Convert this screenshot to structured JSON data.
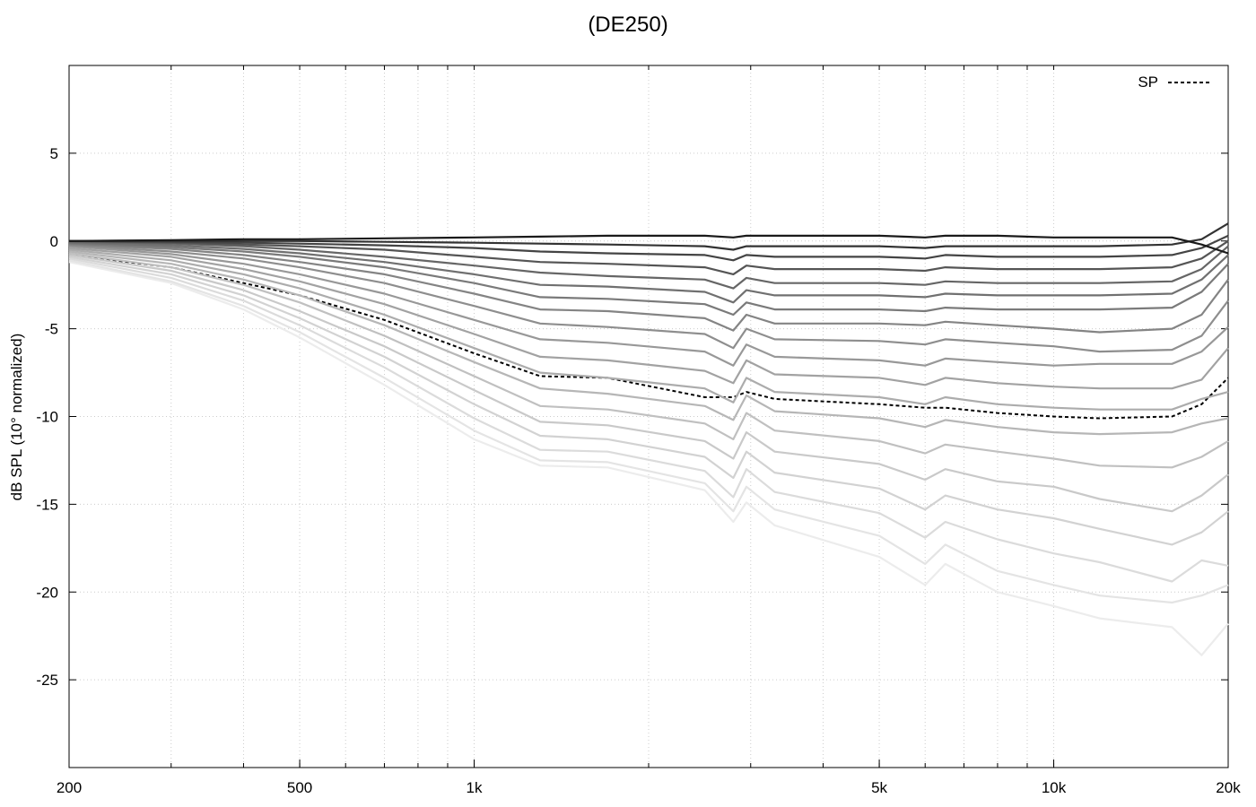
{
  "chart_data": {
    "type": "line",
    "title": "(DE250)",
    "xlabel": "",
    "ylabel": "dB SPL (10° normalized)",
    "x_scale": "log",
    "xlim": [
      200,
      20000
    ],
    "ylim": [
      -30,
      10
    ],
    "x_ticks": [
      {
        "value": 200,
        "label": "200"
      },
      {
        "value": 500,
        "label": "500"
      },
      {
        "value": 1000,
        "label": "1k"
      },
      {
        "value": 5000,
        "label": "5k"
      },
      {
        "value": 10000,
        "label": "10k"
      },
      {
        "value": 20000,
        "label": "20k"
      }
    ],
    "y_ticks": [
      5,
      0,
      -5,
      -10,
      -15,
      -20,
      -25
    ],
    "grid": true,
    "legend": {
      "position": "top-right",
      "entries": [
        "SP"
      ]
    },
    "x": [
      200,
      300,
      400,
      500,
      700,
      1000,
      1300,
      1700,
      2500,
      2800,
      2950,
      3300,
      5000,
      6000,
      6500,
      8000,
      10000,
      12000,
      16000,
      18000,
      20000
    ],
    "series": [
      {
        "name": "",
        "color": "#1a1a1a",
        "values": [
          0,
          0.05,
          0.1,
          0.1,
          0.15,
          0.2,
          0.25,
          0.3,
          0.3,
          0.2,
          0.3,
          0.3,
          0.3,
          0.2,
          0.3,
          0.3,
          0.2,
          0.2,
          0.2,
          -0.2,
          -0.7
        ]
      },
      {
        "name": "",
        "color": "#333333",
        "values": [
          0,
          0,
          0,
          0,
          -0.05,
          -0.1,
          -0.15,
          -0.2,
          -0.3,
          -0.5,
          -0.3,
          -0.3,
          -0.3,
          -0.4,
          -0.3,
          -0.3,
          -0.3,
          -0.3,
          -0.2,
          0.1,
          1.0
        ]
      },
      {
        "name": "",
        "color": "#444444",
        "values": [
          0,
          -0.05,
          -0.1,
          -0.15,
          -0.25,
          -0.4,
          -0.6,
          -0.7,
          -0.8,
          -1.1,
          -0.8,
          -0.9,
          -0.9,
          -1.0,
          -0.8,
          -0.9,
          -0.9,
          -0.9,
          -0.8,
          -0.4,
          0.3
        ]
      },
      {
        "name": "",
        "color": "#555555",
        "values": [
          0,
          -0.1,
          -0.2,
          -0.3,
          -0.5,
          -0.9,
          -1.2,
          -1.3,
          -1.5,
          -1.9,
          -1.4,
          -1.6,
          -1.6,
          -1.7,
          -1.5,
          -1.6,
          -1.6,
          -1.6,
          -1.5,
          -1.0,
          0
        ]
      },
      {
        "name": "",
        "color": "#666666",
        "values": [
          -0.05,
          -0.15,
          -0.3,
          -0.5,
          -0.9,
          -1.4,
          -1.8,
          -2.0,
          -2.2,
          -2.7,
          -2.1,
          -2.4,
          -2.4,
          -2.5,
          -2.3,
          -2.4,
          -2.4,
          -2.4,
          -2.3,
          -1.6,
          -0.3
        ]
      },
      {
        "name": "",
        "color": "#707070",
        "values": [
          -0.1,
          -0.25,
          -0.45,
          -0.7,
          -1.2,
          -1.9,
          -2.5,
          -2.6,
          -2.9,
          -3.5,
          -2.8,
          -3.1,
          -3.1,
          -3.2,
          -3.0,
          -3.1,
          -3.1,
          -3.1,
          -3.0,
          -2.2,
          -0.8
        ]
      },
      {
        "name": "",
        "color": "#7a7a7a",
        "values": [
          -0.15,
          -0.35,
          -0.6,
          -0.9,
          -1.5,
          -2.4,
          -3.2,
          -3.3,
          -3.6,
          -4.2,
          -3.5,
          -3.9,
          -3.9,
          -4.0,
          -3.8,
          -3.9,
          -3.9,
          -3.9,
          -3.8,
          -2.9,
          -1.3
        ]
      },
      {
        "name": "",
        "color": "#848484",
        "values": [
          -0.2,
          -0.45,
          -0.8,
          -1.2,
          -1.9,
          -3.0,
          -3.9,
          -4.0,
          -4.4,
          -5.1,
          -4.2,
          -4.7,
          -4.7,
          -4.8,
          -4.6,
          -4.8,
          -5.0,
          -5.2,
          -5.0,
          -4.2,
          -2.2
        ]
      },
      {
        "name": "",
        "color": "#8e8e8e",
        "values": [
          -0.25,
          -0.6,
          -1.0,
          -1.5,
          -2.4,
          -3.7,
          -4.7,
          -4.9,
          -5.3,
          -6.1,
          -5.0,
          -5.6,
          -5.7,
          -5.9,
          -5.6,
          -5.8,
          -6.0,
          -6.3,
          -6.2,
          -5.4,
          -3.4
        ]
      },
      {
        "name": "",
        "color": "#989898",
        "values": [
          -0.3,
          -0.75,
          -1.3,
          -1.9,
          -3.0,
          -4.5,
          -5.6,
          -5.8,
          -6.3,
          -7.1,
          -5.9,
          -6.6,
          -6.8,
          -7.1,
          -6.7,
          -6.9,
          -7.1,
          -7.0,
          -7.0,
          -6.3,
          -4.9
        ]
      },
      {
        "name": "",
        "color": "#a2a2a2",
        "values": [
          -0.4,
          -0.9,
          -1.6,
          -2.3,
          -3.6,
          -5.3,
          -6.6,
          -6.8,
          -7.4,
          -8.1,
          -6.8,
          -7.6,
          -7.8,
          -8.2,
          -7.8,
          -8.1,
          -8.3,
          -8.4,
          -8.4,
          -7.9,
          -6.1
        ]
      },
      {
        "name": "",
        "color": "#acacac",
        "values": [
          -0.5,
          -1.1,
          -1.9,
          -2.7,
          -4.2,
          -6.1,
          -7.5,
          -7.8,
          -8.4,
          -9.2,
          -7.8,
          -8.6,
          -8.9,
          -9.3,
          -8.9,
          -9.3,
          -9.5,
          -9.6,
          -9.6,
          -9.0,
          -8.6
        ]
      },
      {
        "name": "",
        "color": "#b6b6b6",
        "values": [
          -0.6,
          -1.3,
          -2.2,
          -3.1,
          -4.8,
          -6.9,
          -8.4,
          -8.7,
          -9.4,
          -10.2,
          -8.8,
          -9.7,
          -10.1,
          -10.6,
          -10.2,
          -10.6,
          -10.9,
          -11.0,
          -10.9,
          -10.4,
          -10.1
        ]
      },
      {
        "name": "",
        "color": "#c0c0c0",
        "values": [
          -0.7,
          -1.5,
          -2.5,
          -3.5,
          -5.4,
          -7.7,
          -9.4,
          -9.6,
          -10.4,
          -11.3,
          -9.8,
          -10.8,
          -11.4,
          -12.1,
          -11.6,
          -12.0,
          -12.4,
          -12.8,
          -12.9,
          -12.3,
          -11.4
        ]
      },
      {
        "name": "",
        "color": "#c9c9c9",
        "values": [
          -0.8,
          -1.7,
          -2.8,
          -4.0,
          -6.0,
          -8.5,
          -10.3,
          -10.5,
          -11.4,
          -12.4,
          -10.9,
          -12.0,
          -12.7,
          -13.6,
          -13.0,
          -13.7,
          -14.0,
          -14.7,
          -15.4,
          -14.5,
          -13.3
        ]
      },
      {
        "name": "",
        "color": "#d2d2d2",
        "values": [
          -0.9,
          -1.9,
          -3.1,
          -4.4,
          -6.6,
          -9.3,
          -11.1,
          -11.3,
          -12.3,
          -13.5,
          -12.0,
          -13.2,
          -14.1,
          -15.3,
          -14.5,
          -15.3,
          -15.8,
          -16.4,
          -17.3,
          -16.6,
          -15.4
        ]
      },
      {
        "name": "",
        "color": "#dbdbdb",
        "values": [
          -1.0,
          -2.1,
          -3.4,
          -4.8,
          -7.2,
          -10.1,
          -11.9,
          -12.0,
          -13.1,
          -14.6,
          -13.0,
          -14.3,
          -15.5,
          -16.9,
          -16.0,
          -17.0,
          -17.8,
          -18.3,
          -19.4,
          -18.2,
          -18.5
        ]
      },
      {
        "name": "",
        "color": "#e4e4e4",
        "values": [
          -1.1,
          -2.3,
          -3.7,
          -5.2,
          -7.8,
          -10.8,
          -12.5,
          -12.6,
          -13.8,
          -15.4,
          -14.0,
          -15.3,
          -16.8,
          -18.4,
          -17.3,
          -18.8,
          -19.6,
          -20.2,
          -20.6,
          -20.2,
          -19.6
        ]
      },
      {
        "name": "",
        "color": "#ececec",
        "values": [
          -1.2,
          -2.4,
          -3.9,
          -5.5,
          -8.2,
          -11.3,
          -12.8,
          -12.9,
          -14.2,
          -16.0,
          -14.9,
          -16.2,
          -18.0,
          -19.6,
          -18.4,
          -20.0,
          -20.8,
          -21.5,
          -22.0,
          -23.6,
          -21.8
        ]
      },
      {
        "name": "SP",
        "color": "#000000",
        "dashed": true,
        "values": [
          -0.8,
          -1.5,
          -2.4,
          -3.1,
          -4.5,
          -6.4,
          -7.7,
          -7.8,
          -8.9,
          -8.9,
          -8.6,
          -9.0,
          -9.3,
          -9.5,
          -9.5,
          -9.8,
          -10.0,
          -10.1,
          -10.0,
          -9.3,
          -7.8
        ]
      }
    ]
  }
}
